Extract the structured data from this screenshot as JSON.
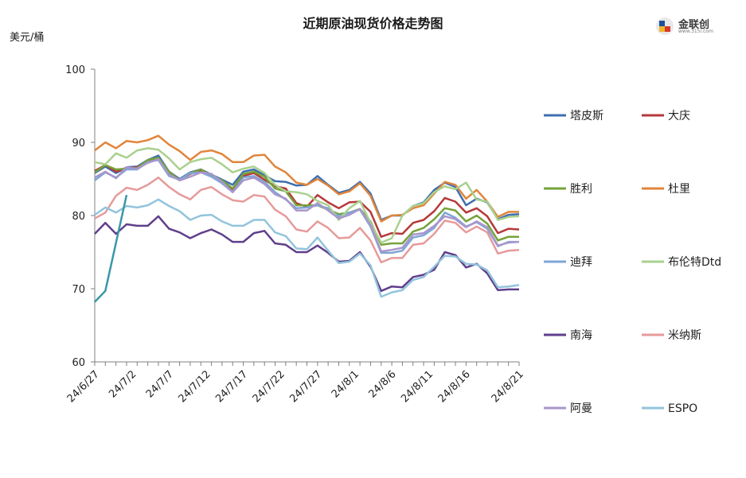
{
  "title": "近期原油现货价格走势图",
  "unit": "美元/桶",
  "logo": {
    "text": "金联创",
    "subtext": "www.315i.com"
  },
  "chart_data": {
    "type": "line",
    "title": "近期原油现货价格走势图",
    "ylabel": "美元/桶",
    "ylim": [
      60,
      100
    ],
    "yticks": [
      60,
      70,
      80,
      90,
      100
    ],
    "xtick_labels": [
      "24/6/27",
      "24/7/2",
      "24/7/7",
      "24/7/12",
      "24/7/17",
      "24/7/22",
      "24/7/27",
      "24/8/1",
      "24/8/6",
      "24/8/11",
      "24/8/16",
      "24/8/21"
    ],
    "grid": false,
    "legend_position": "right",
    "x": [
      "6/27",
      "6/28",
      "7/1",
      "7/2",
      "7/3",
      "7/4",
      "7/5",
      "7/8",
      "7/9",
      "7/10",
      "7/11",
      "7/12",
      "7/15",
      "7/16",
      "7/17",
      "7/18",
      "7/19",
      "7/22",
      "7/23",
      "7/24",
      "7/25",
      "7/26",
      "7/29",
      "7/30",
      "7/31",
      "8/1",
      "8/2",
      "8/5",
      "8/6",
      "8/7",
      "8/8",
      "8/9",
      "8/12",
      "8/13",
      "8/14",
      "8/15",
      "8/16",
      "8/19",
      "8/20",
      "8/21",
      "8/22"
    ],
    "series": [
      {
        "name": "塔皮斯",
        "color": "#3e6fb0",
        "values": [
          85.8,
          86.7,
          85.8,
          86.6,
          86.7,
          87.6,
          88.2,
          86.0,
          85.0,
          85.9,
          86.3,
          85.6,
          84.9,
          84.2,
          86.0,
          86.3,
          85.5,
          84.7,
          84.6,
          84.1,
          84.2,
          85.4,
          84.2,
          83.1,
          83.5,
          84.6,
          83.0,
          79.4,
          80.0,
          80.0,
          81.3,
          81.8,
          83.5,
          84.5,
          83.9,
          81.4,
          82.3,
          81.8,
          79.5,
          80.1,
          80.2
        ]
      },
      {
        "name": "大庆",
        "color": "#b5393b",
        "values": [
          86.1,
          86.9,
          86.0,
          86.5,
          86.6,
          87.4,
          87.9,
          85.8,
          84.9,
          85.7,
          86.2,
          85.5,
          84.7,
          83.6,
          85.4,
          85.8,
          84.9,
          84.0,
          83.7,
          81.7,
          81.2,
          82.8,
          81.8,
          81.0,
          81.8,
          81.9,
          80.5,
          77.1,
          77.6,
          77.5,
          79.0,
          79.4,
          80.6,
          82.4,
          81.9,
          80.4,
          81.0,
          79.9,
          77.6,
          78.2,
          78.1
        ]
      },
      {
        "name": "胜利",
        "color": "#76a33a",
        "values": [
          85.9,
          86.9,
          86.3,
          86.4,
          86.5,
          87.6,
          87.9,
          86.0,
          84.8,
          85.8,
          86.3,
          85.4,
          84.8,
          83.7,
          85.7,
          86.0,
          85.3,
          83.7,
          83.3,
          81.4,
          81.4,
          81.4,
          80.8,
          80.2,
          80.4,
          80.9,
          79.2,
          76.0,
          76.2,
          76.2,
          77.8,
          78.3,
          79.5,
          81.0,
          80.7,
          79.2,
          80.0,
          78.9,
          76.6,
          77.1,
          77.1
        ]
      },
      {
        "name": "杜里",
        "color": "#e0853b",
        "values": [
          88.9,
          90.0,
          89.2,
          90.2,
          90.0,
          90.3,
          90.9,
          89.7,
          88.8,
          87.6,
          88.7,
          88.9,
          88.4,
          87.3,
          87.3,
          88.2,
          88.3,
          86.7,
          85.9,
          84.5,
          84.2,
          85.0,
          84.1,
          82.9,
          83.3,
          84.4,
          82.7,
          79.2,
          80.0,
          80.1,
          81.0,
          81.4,
          83.0,
          84.6,
          84.2,
          82.3,
          83.5,
          81.9,
          79.8,
          80.5,
          80.5
        ]
      },
      {
        "name": "迪拜",
        "color": "#7ea6d6",
        "values": [
          84.8,
          85.9,
          85.2,
          86.3,
          86.3,
          87.3,
          87.6,
          85.4,
          84.9,
          85.8,
          85.9,
          85.3,
          84.4,
          83.2,
          85.2,
          85.4,
          84.6,
          83.2,
          82.2,
          81.0,
          81.1,
          81.4,
          81.0,
          79.9,
          80.4,
          80.8,
          78.5,
          74.9,
          74.9,
          75.2,
          77.0,
          77.3,
          78.3,
          80.4,
          79.7,
          78.5,
          79.1,
          78.2,
          75.8,
          76.4,
          76.4
        ]
      },
      {
        "name": "布伦特Dtd",
        "color": "#a9d18e",
        "values": [
          87.3,
          87.0,
          88.5,
          87.9,
          88.9,
          89.2,
          89.0,
          87.8,
          86.3,
          87.3,
          87.7,
          87.9,
          87.0,
          85.9,
          86.4,
          86.7,
          85.8,
          84.2,
          83.3,
          83.2,
          82.9,
          82.0,
          81.4,
          79.4,
          81.0,
          82.0,
          79.0,
          76.3,
          76.9,
          80.0,
          81.3,
          81.7,
          83.2,
          84.0,
          83.6,
          84.5,
          82.2,
          81.9,
          79.4,
          79.8,
          79.9
        ]
      },
      {
        "name": "南海",
        "color": "#603f8b",
        "values": [
          77.5,
          79.0,
          77.5,
          78.8,
          78.6,
          78.6,
          79.9,
          78.2,
          77.7,
          76.9,
          77.6,
          78.1,
          77.4,
          76.4,
          76.4,
          77.6,
          77.9,
          76.2,
          76.0,
          75.0,
          75.0,
          75.9,
          74.9,
          73.7,
          73.8,
          75.0,
          73.0,
          69.7,
          70.3,
          70.2,
          71.6,
          71.9,
          72.6,
          75.0,
          74.6,
          72.9,
          73.4,
          72.1,
          69.8,
          69.9,
          69.9
        ]
      },
      {
        "name": "米纳斯",
        "color": "#e69a9a",
        "values": [
          79.6,
          80.4,
          82.7,
          83.8,
          83.5,
          84.2,
          85.2,
          83.9,
          82.9,
          82.2,
          83.5,
          83.9,
          82.9,
          82.1,
          81.9,
          82.8,
          82.6,
          80.8,
          79.9,
          78.1,
          77.8,
          79.2,
          78.3,
          76.9,
          77.0,
          78.3,
          76.6,
          73.6,
          74.2,
          74.2,
          76.0,
          76.2,
          77.5,
          79.3,
          79.0,
          77.7,
          78.5,
          77.7,
          74.8,
          75.2,
          75.3
        ]
      },
      {
        "name": "阿曼",
        "color": "#a996cc",
        "values": [
          85.2,
          86.0,
          85.1,
          86.6,
          86.4,
          87.2,
          87.7,
          85.6,
          84.8,
          85.3,
          85.9,
          85.7,
          84.6,
          83.2,
          84.8,
          85.2,
          84.3,
          82.9,
          82.3,
          80.7,
          80.7,
          81.7,
          80.7,
          79.6,
          80.1,
          80.9,
          78.7,
          75.1,
          75.3,
          75.6,
          77.4,
          77.6,
          78.6,
          79.9,
          79.5,
          78.4,
          79.2,
          78.4,
          75.9,
          76.3,
          76.4
        ]
      },
      {
        "name": "ESPO",
        "color": "#92c4dc",
        "values": [
          80.1,
          81.1,
          80.4,
          81.3,
          81.1,
          81.4,
          82.2,
          81.3,
          80.6,
          79.4,
          80.0,
          80.1,
          79.2,
          78.6,
          78.6,
          79.4,
          79.4,
          77.7,
          77.2,
          75.5,
          75.4,
          77.0,
          75.2,
          73.5,
          73.7,
          74.8,
          73.2,
          68.9,
          69.5,
          69.8,
          71.2,
          71.6,
          73.0,
          74.5,
          74.4,
          73.4,
          73.3,
          72.5,
          70.2,
          70.3,
          70.5
        ]
      },
      {
        "name": "",
        "color": "#3a98a8",
        "values": [
          68.2,
          69.7,
          null,
          82.8,
          null,
          null,
          null,
          null,
          null,
          null,
          null,
          null,
          null,
          null,
          null,
          null,
          null,
          null,
          null,
          null,
          null,
          null,
          null,
          null,
          null,
          null,
          null,
          null,
          null,
          null,
          null,
          null,
          null,
          null,
          null,
          null,
          null,
          null,
          null,
          null,
          null
        ]
      }
    ]
  }
}
